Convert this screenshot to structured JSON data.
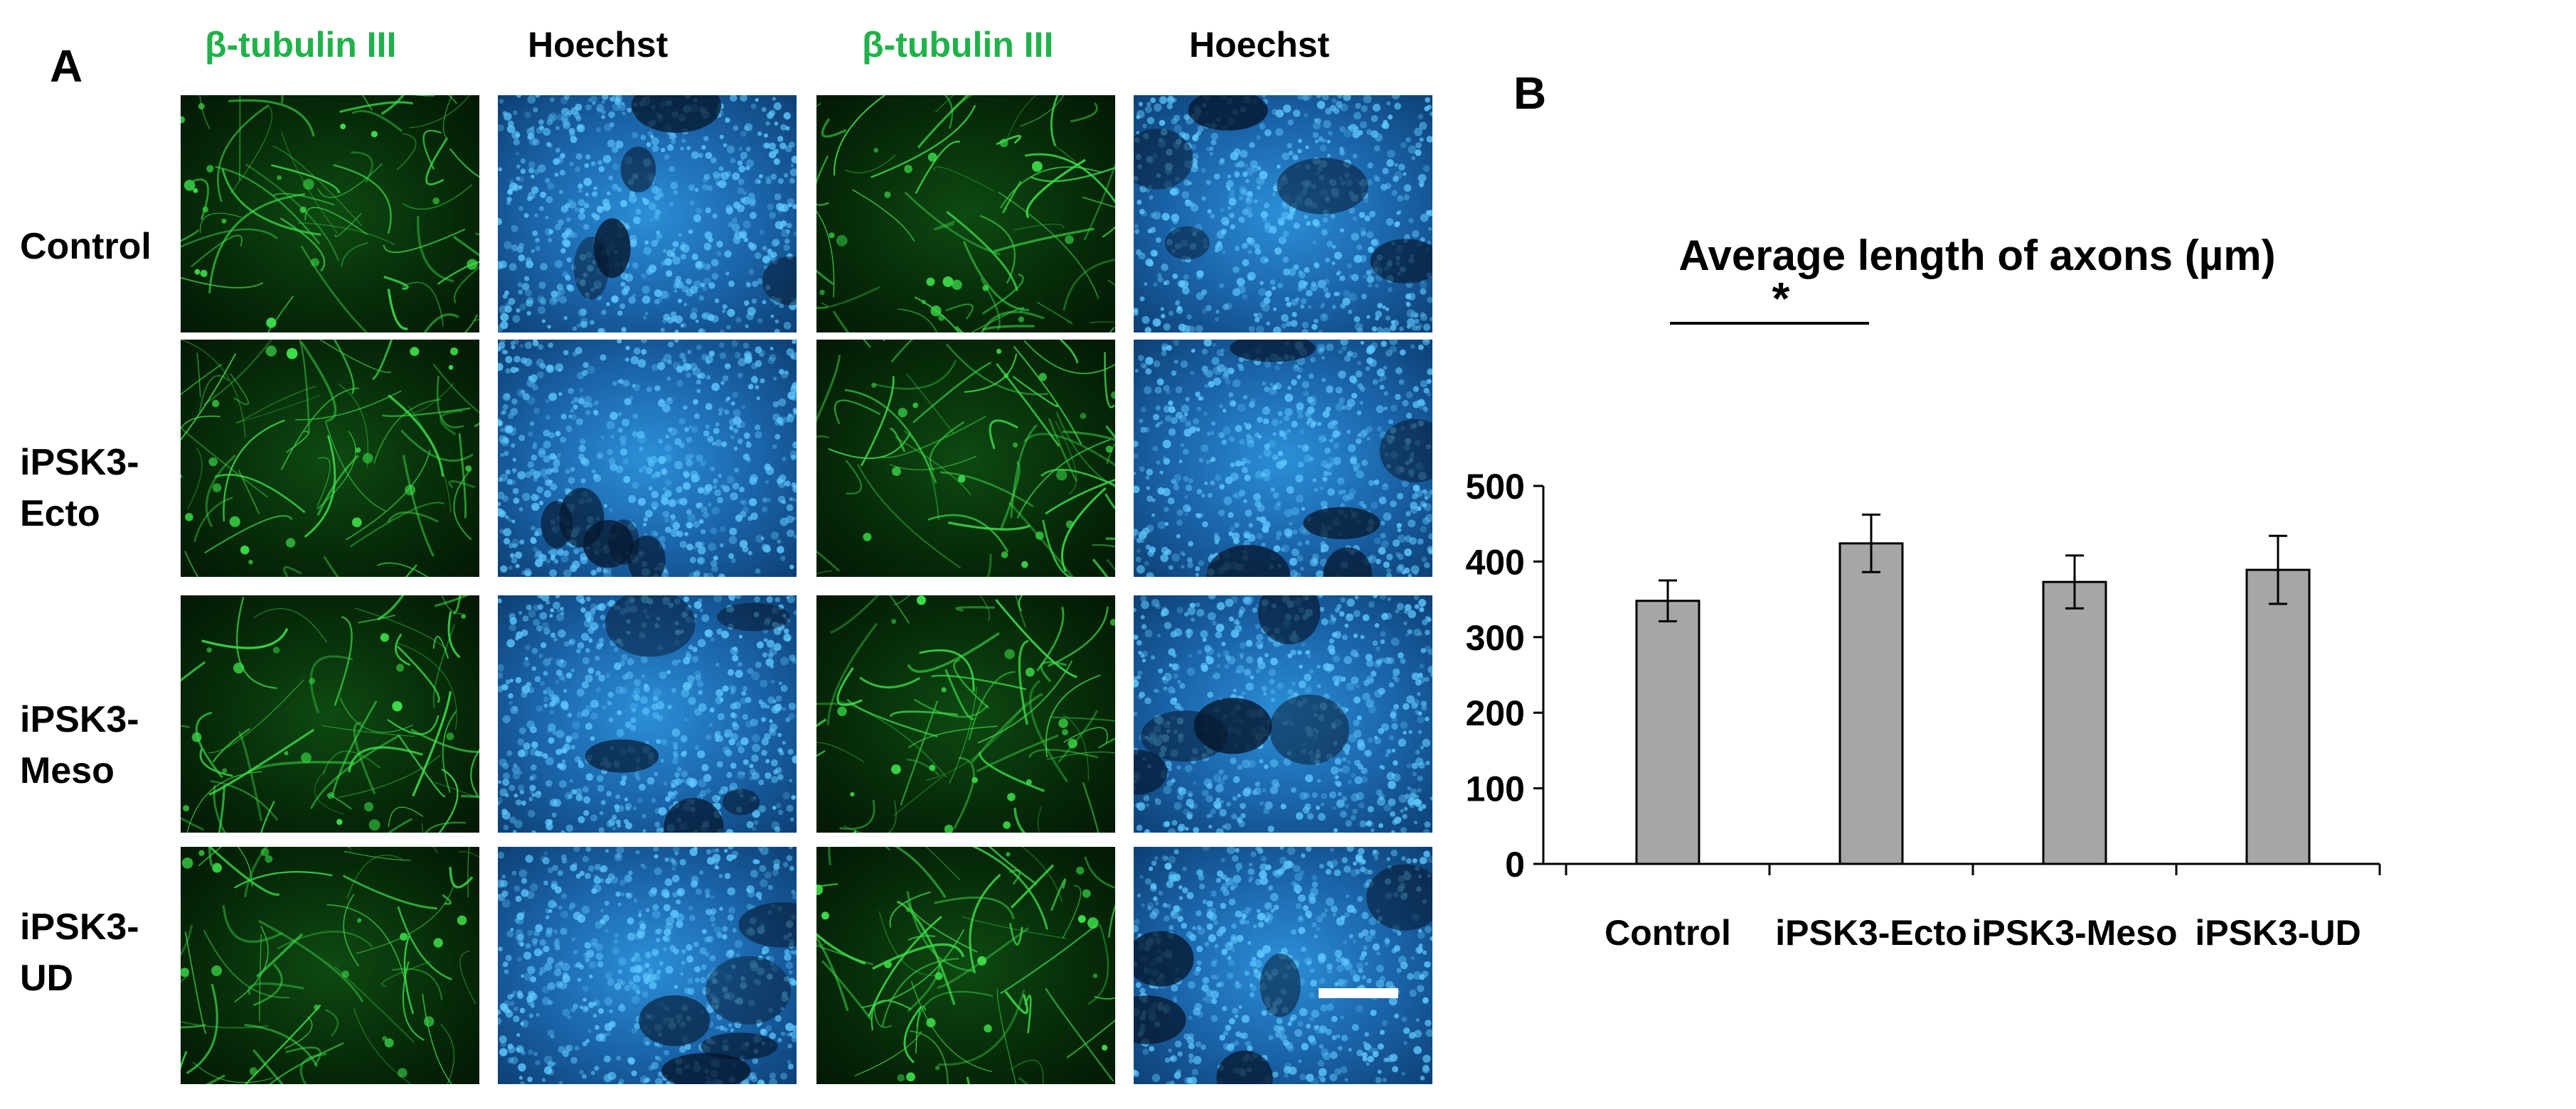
{
  "panel_a": {
    "letter": "A",
    "column_labels": [
      "β-tubulin III",
      "Hoechst",
      "β-tubulin III",
      "Hoechst"
    ],
    "row_labels": [
      [
        "Control"
      ],
      [
        "iPSK3-",
        "Ecto"
      ],
      [
        "iPSK3-",
        "Meso"
      ],
      [
        "iPSK3-",
        "UD"
      ]
    ],
    "colors": {
      "tubulin_label": "#20b24a",
      "tubulin_stain": "#3ddc4a",
      "hoechst_stain": "#5ec8ff"
    }
  },
  "panel_b": {
    "letter": "B"
  },
  "chart_data": {
    "type": "bar",
    "title": "Average length of axons (µm)",
    "categories": [
      "Control",
      "iPSK3-Ecto",
      "iPSK3-Meso",
      "iPSK3-UD"
    ],
    "values": [
      348,
      424,
      373,
      389
    ],
    "errors": [
      27,
      38,
      35,
      45
    ],
    "ylim": [
      0,
      500
    ],
    "yticks": [
      0,
      100,
      200,
      300,
      400,
      500
    ],
    "grid": false,
    "bar_color": "#a6a6a6",
    "significance": {
      "from": 0,
      "to": 1,
      "label": "*"
    }
  }
}
